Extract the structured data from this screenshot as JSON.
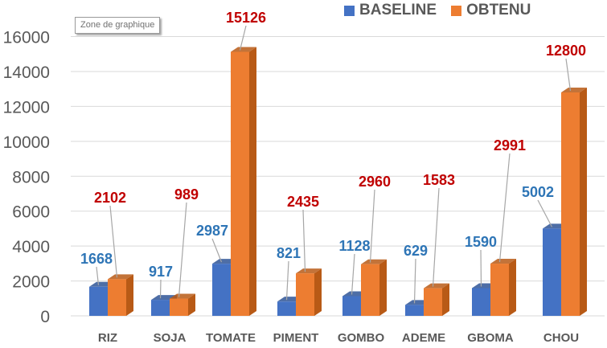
{
  "tooltip": {
    "text": "Zone de graphique"
  },
  "colors": {
    "baseline": "#4472C4",
    "baseline_dark": "#2F5597",
    "obtenu": "#ED7D31",
    "obtenu_dark": "#B85A16",
    "baseline_label": "#2E75B6",
    "obtenu_label": "#C00000",
    "grid": "#D9D9D9",
    "axis_text": "#595959"
  },
  "chart_data": {
    "type": "bar",
    "categories": [
      "RIZ",
      "SOJA",
      "TOMATE",
      "PIMENT",
      "GOMBO",
      "ADEME",
      "GBOMA",
      "CHOU"
    ],
    "series": [
      {
        "name": "BASELINE",
        "values": [
          1668,
          917,
          2987,
          821,
          1128,
          629,
          1590,
          5002
        ]
      },
      {
        "name": "OBTENU",
        "values": [
          2102,
          989,
          15126,
          2435,
          2960,
          1583,
          2991,
          12800
        ]
      }
    ],
    "ylim": [
      0,
      16000
    ],
    "yticks": [
      0,
      2000,
      4000,
      6000,
      8000,
      10000,
      12000,
      14000,
      16000
    ],
    "grid": true,
    "legend_position": "top-right",
    "style": "3d-clustered-column"
  }
}
